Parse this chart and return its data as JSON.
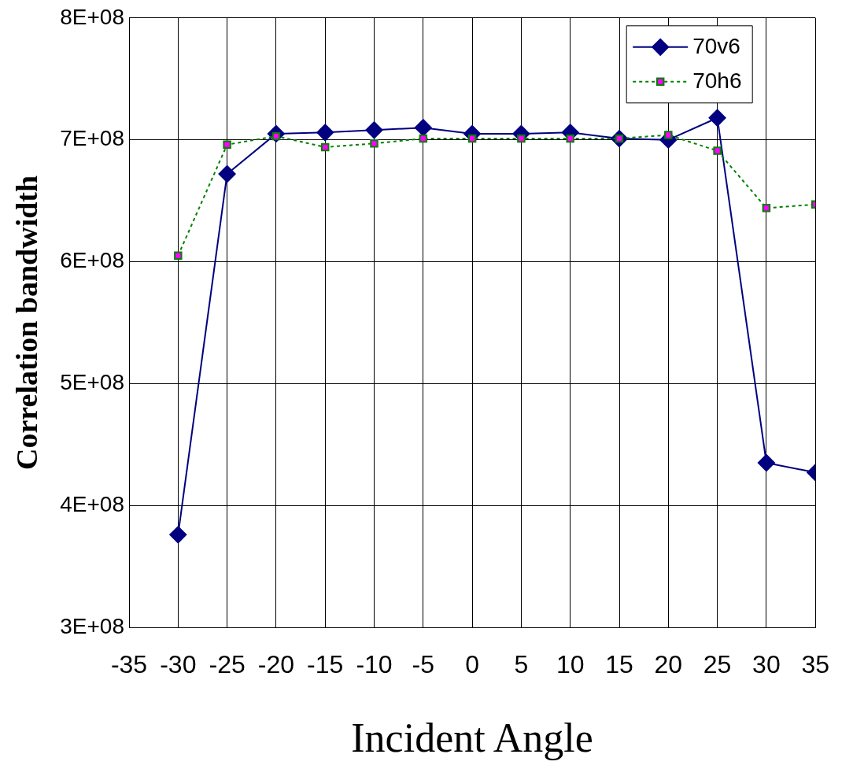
{
  "chart_data": {
    "type": "line",
    "xlabel": "Incident Angle",
    "ylabel": "Correlation bandwidth",
    "x": [
      -30,
      -25,
      -20,
      -15,
      -10,
      -5,
      0,
      5,
      10,
      15,
      20,
      25,
      30,
      35
    ],
    "series": [
      {
        "name": "70v6",
        "color": "#000080",
        "marker": "diamond",
        "line_style": "solid",
        "values": [
          376000000,
          672000000,
          705000000,
          706000000,
          708000000,
          710000000,
          705000000,
          705000000,
          706000000,
          701000000,
          700000000,
          718000000,
          435000000,
          427000000
        ]
      },
      {
        "name": "70h6",
        "color": "#008000",
        "colors": [
          "#ff00ff",
          "#ff00ff",
          "#ff00ff",
          "#ff00ff",
          "#ff00ff",
          "#ff00ff",
          "#ff00ff",
          "#ff00ff",
          "#ff00ff",
          "#ff00ff",
          "#ff00ff",
          "#ff00ff",
          "#ff00ff",
          "#ff00ff"
        ],
        "marker": "square",
        "line_style": "dotted",
        "values": [
          605000000,
          696000000,
          703000000,
          694000000,
          697000000,
          701000000,
          701000000,
          701000000,
          701000000,
          701000000,
          704000000,
          691000000,
          644000000,
          647000000
        ]
      }
    ],
    "xlim": [
      -35,
      35
    ],
    "xticks": [
      -35,
      -30,
      -25,
      -20,
      -15,
      -10,
      -5,
      0,
      5,
      10,
      15,
      20,
      25,
      30,
      35
    ],
    "ylim": [
      300000000,
      800000000
    ],
    "yticks": [
      {
        "value": 300000000,
        "label": "3E+08"
      },
      {
        "value": 400000000,
        "label": "4E+08"
      },
      {
        "value": 500000000,
        "label": "5E+08"
      },
      {
        "value": 600000000,
        "label": "6E+08"
      },
      {
        "value": 700000000,
        "label": "7E+08"
      },
      {
        "value": 800000000,
        "label": "8E+08"
      }
    ],
    "grid": true,
    "legend": "top right"
  }
}
